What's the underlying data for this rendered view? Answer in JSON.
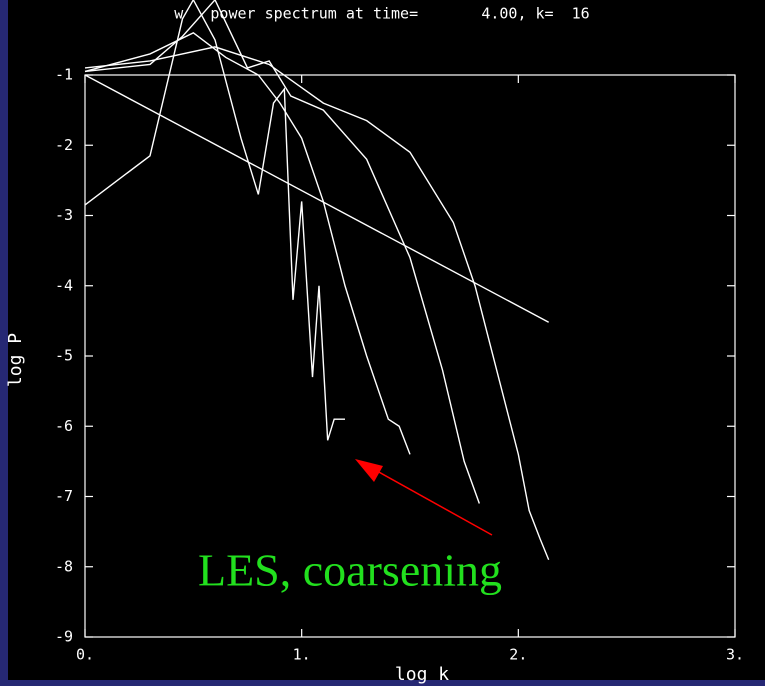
{
  "chart_data": {
    "type": "line",
    "title": "w   power spectrum at time=       4.00, k=  16",
    "x_label": "log k",
    "y_label": "log P",
    "annotation": "LES, coarsening",
    "annotation_color": "#22e01e",
    "arrow_color": "#ff0000",
    "xlim": [
      0,
      3
    ],
    "ylim": [
      -9,
      -1
    ],
    "xticks": [
      {
        "value": 0,
        "label": "0."
      },
      {
        "value": 1,
        "label": "1."
      },
      {
        "value": 2,
        "label": "2."
      },
      {
        "value": 3,
        "label": "3."
      }
    ],
    "yticks": [
      -1,
      -2,
      -3,
      -4,
      -5,
      -6,
      -7,
      -8,
      -9
    ],
    "series": [
      {
        "color": "#ffffff",
        "x": [
          0,
          0.3,
          0.45,
          0.5,
          0.6,
          0.72,
          0.8,
          0.87,
          0.92,
          0.96,
          1.0,
          1.05,
          1.08,
          1.12,
          1.15,
          1.2
        ],
        "values": [
          -2.85,
          -2.15,
          -0.2,
          0.07,
          -0.5,
          -1.9,
          -2.7,
          -1.4,
          -1.2,
          -4.2,
          -2.8,
          -5.3,
          -4.0,
          -6.2,
          -5.9,
          -5.9
        ]
      },
      {
        "color": "#ffffff",
        "x": [
          0,
          0.3,
          0.5,
          0.65,
          0.8,
          0.9,
          1.0,
          1.1,
          1.2,
          1.3,
          1.4,
          1.45,
          1.5
        ],
        "values": [
          -0.95,
          -0.7,
          -0.4,
          -0.75,
          -1.0,
          -1.4,
          -1.9,
          -2.8,
          -4.0,
          -5.0,
          -5.9,
          -6.0,
          -6.4
        ]
      },
      {
        "color": "#ffffff",
        "x": [
          0,
          0.3,
          0.45,
          0.6,
          0.75,
          0.85,
          0.95,
          1.1,
          1.3,
          1.5,
          1.65,
          1.75,
          1.82
        ],
        "values": [
          -0.95,
          -0.85,
          -0.45,
          0.07,
          -0.9,
          -0.8,
          -1.3,
          -1.5,
          -2.2,
          -3.6,
          -5.2,
          -6.5,
          -7.1
        ]
      },
      {
        "color": "#ffffff",
        "x": [
          0,
          0.3,
          0.6,
          0.85,
          1.1,
          1.3,
          1.5,
          1.7,
          1.8,
          1.9,
          2.0,
          2.05,
          2.1,
          2.14
        ],
        "values": [
          -0.9,
          -0.8,
          -0.6,
          -0.85,
          -1.4,
          -1.65,
          -2.1,
          -3.1,
          -4.0,
          -5.2,
          -6.4,
          -7.2,
          -7.6,
          -7.9
        ]
      },
      {
        "color": "#ffffff",
        "x": [
          0,
          2.14
        ],
        "values": [
          -1,
          -4.52
        ]
      }
    ]
  }
}
